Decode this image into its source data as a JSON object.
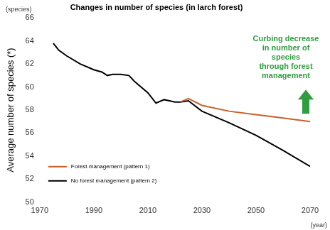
{
  "chart_data": {
    "type": "line",
    "title": "Changes in number of species (in larch forest)",
    "y_label": "Average number of species (*)",
    "y_unit": "(species)",
    "x_label": "(year)",
    "annotation": [
      "Curbing decrease",
      "in number of",
      "species",
      "through forest",
      "management"
    ],
    "x": [
      1975,
      1977,
      1980,
      1985,
      1990,
      1993,
      1995,
      1997,
      2000,
      2003,
      2005,
      2010,
      2013,
      2016,
      2018,
      2020,
      2022,
      2025,
      2030,
      2040,
      2050,
      2060,
      2070
    ],
    "series": [
      {
        "name": "Forest management (pattern 1)",
        "color": "#c8602a",
        "values": [
          null,
          null,
          null,
          null,
          null,
          null,
          null,
          null,
          null,
          null,
          null,
          null,
          null,
          null,
          null,
          null,
          58.7,
          59.0,
          58.4,
          57.9,
          57.6,
          57.3,
          57.0
        ]
      },
      {
        "name": "No forest management (pattern 2)",
        "color": "#000000",
        "values": [
          63.8,
          63.2,
          62.7,
          62.0,
          61.5,
          61.3,
          61.0,
          61.1,
          61.1,
          61.0,
          60.5,
          59.5,
          58.6,
          58.9,
          58.8,
          58.7,
          58.7,
          58.8,
          57.9,
          56.9,
          55.8,
          54.5,
          53.1
        ]
      }
    ],
    "xlim": [
      1970,
      2070
    ],
    "xticks": [
      1970,
      1990,
      2010,
      2030,
      2050,
      2070
    ],
    "ylim": [
      50,
      66
    ],
    "yticks": [
      50,
      52,
      54,
      56,
      58,
      60,
      62,
      64,
      66
    ],
    "grid": false,
    "legend": "lower left"
  }
}
